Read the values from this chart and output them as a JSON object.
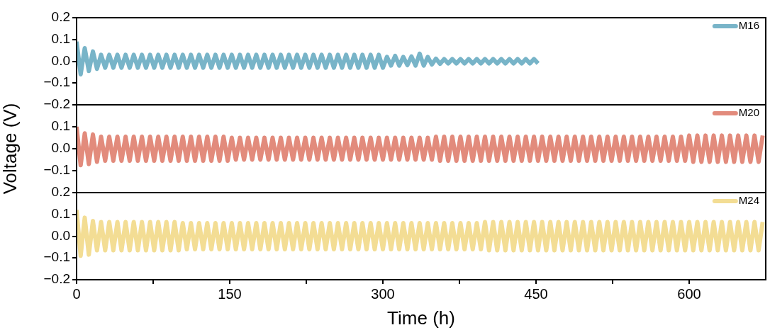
{
  "chart_data": [
    {
      "type": "line",
      "xlim": [
        0,
        675
      ],
      "ylim": [
        -0.2,
        0.2
      ],
      "yticks": [
        {
          "value": -0.2,
          "label": "−0.2"
        },
        {
          "value": -0.1,
          "label": "−0.1"
        },
        {
          "value": 0.0,
          "label": "0.0"
        },
        {
          "value": 0.1,
          "label": "0.1"
        },
        {
          "value": 0.2,
          "label": "0.2"
        }
      ],
      "tick_labels": "y",
      "grid": false,
      "legend": "top right",
      "x": [
        0,
        4,
        8,
        12,
        16,
        20,
        24,
        28,
        32,
        36,
        40,
        44,
        48,
        52,
        56,
        60,
        64,
        68,
        72,
        76,
        80,
        84,
        88,
        92,
        96,
        100,
        104,
        108,
        112,
        116,
        120,
        124,
        128,
        132,
        136,
        140,
        144,
        148,
        152,
        156,
        160,
        164,
        168,
        172,
        176,
        180,
        184,
        188,
        192,
        196,
        200,
        204,
        208,
        212,
        216,
        220,
        224,
        228,
        232,
        236,
        240,
        244,
        248,
        252,
        256,
        260,
        264,
        268,
        272,
        276,
        280,
        284,
        288,
        292,
        296,
        300,
        304,
        308,
        312,
        316,
        320,
        324,
        328,
        332,
        336,
        340,
        344,
        348,
        352,
        356,
        360,
        364,
        368,
        372,
        376,
        380,
        384,
        388,
        392,
        396,
        400,
        404,
        408,
        412,
        416,
        420,
        424,
        428,
        432,
        436,
        440,
        444,
        448,
        452
      ],
      "series": [
        {
          "name": "M16",
          "color": "#78b4c8",
          "values": [
            0.09,
            -0.06,
            0.06,
            -0.045,
            0.045,
            -0.035,
            0.03,
            -0.03,
            0.03,
            -0.03,
            0.03,
            -0.03,
            0.03,
            -0.03,
            0.03,
            -0.03,
            0.03,
            -0.03,
            0.03,
            -0.03,
            0.03,
            -0.03,
            0.03,
            -0.03,
            0.03,
            -0.03,
            0.03,
            -0.03,
            0.03,
            -0.03,
            0.03,
            -0.03,
            0.03,
            -0.03,
            0.03,
            -0.03,
            0.03,
            -0.03,
            0.03,
            -0.03,
            0.03,
            -0.03,
            0.03,
            -0.03,
            0.03,
            -0.03,
            0.03,
            -0.03,
            0.03,
            -0.03,
            0.03,
            -0.03,
            0.03,
            -0.03,
            0.03,
            -0.03,
            0.03,
            -0.03,
            0.03,
            -0.03,
            0.03,
            -0.03,
            0.03,
            -0.03,
            0.03,
            -0.03,
            0.03,
            -0.03,
            0.03,
            -0.03,
            0.03,
            -0.03,
            0.03,
            -0.03,
            0.03,
            -0.03,
            0.02,
            -0.02,
            0.025,
            -0.02,
            0.02,
            -0.018,
            0.022,
            -0.02,
            0.035,
            -0.02,
            0.02,
            -0.015,
            0.012,
            -0.012,
            0.01,
            -0.01,
            0.01,
            -0.01,
            0.01,
            -0.01,
            0.01,
            -0.01,
            0.01,
            -0.01,
            0.01,
            -0.01,
            0.01,
            -0.01,
            0.01,
            -0.01,
            0.01,
            -0.01,
            0.01,
            -0.01,
            0.01,
            -0.01,
            0.01,
            -0.01
          ]
        }
      ]
    },
    {
      "type": "line",
      "xlim": [
        0,
        675
      ],
      "ylim": [
        -0.2,
        0.2
      ],
      "yticks": [
        {
          "value": -0.2,
          "label": null
        },
        {
          "value": -0.1,
          "label": "−0.1"
        },
        {
          "value": 0.0,
          "label": "0.0"
        },
        {
          "value": 0.1,
          "label": "0.1"
        },
        {
          "value": 0.2,
          "label": null
        }
      ],
      "tick_labels": "y",
      "grid": false,
      "legend": "top right",
      "ylabel": "Voltage (V)",
      "x": [
        0,
        4,
        8,
        12,
        16,
        20,
        24,
        28,
        32,
        36,
        40,
        44,
        48,
        52,
        56,
        60,
        64,
        68,
        72,
        76,
        80,
        84,
        88,
        92,
        96,
        100,
        104,
        108,
        112,
        116,
        120,
        124,
        128,
        132,
        136,
        140,
        144,
        148,
        152,
        156,
        160,
        164,
        168,
        172,
        176,
        180,
        184,
        188,
        192,
        196,
        200,
        204,
        208,
        212,
        216,
        220,
        224,
        228,
        232,
        236,
        240,
        244,
        248,
        252,
        256,
        260,
        264,
        268,
        272,
        276,
        280,
        284,
        288,
        292,
        296,
        300,
        304,
        308,
        312,
        316,
        320,
        324,
        328,
        332,
        336,
        340,
        344,
        348,
        352,
        356,
        360,
        364,
        368,
        372,
        376,
        380,
        384,
        388,
        392,
        396,
        400,
        404,
        408,
        412,
        416,
        420,
        424,
        428,
        432,
        436,
        440,
        444,
        448,
        452,
        456,
        460,
        464,
        468,
        472,
        476,
        480,
        484,
        488,
        492,
        496,
        500,
        504,
        508,
        512,
        516,
        520,
        524,
        528,
        532,
        536,
        540,
        544,
        548,
        552,
        556,
        560,
        564,
        568,
        572,
        576,
        580,
        584,
        588,
        592,
        596,
        600,
        604,
        608,
        612,
        616,
        620,
        624,
        628,
        632,
        636,
        640,
        644,
        648,
        652,
        656,
        660,
        664,
        668,
        672
      ],
      "series": [
        {
          "name": "M20",
          "color": "#e28b7c",
          "values": [
            0.1,
            -0.075,
            0.07,
            -0.07,
            0.065,
            -0.06,
            0.055,
            -0.055,
            0.055,
            -0.055,
            0.055,
            -0.055,
            0.055,
            -0.055,
            0.055,
            -0.055,
            0.055,
            -0.055,
            0.055,
            -0.055,
            0.055,
            -0.055,
            0.055,
            -0.055,
            0.055,
            -0.055,
            0.055,
            -0.055,
            0.055,
            -0.055,
            0.055,
            -0.055,
            0.055,
            -0.055,
            0.055,
            -0.055,
            0.055,
            -0.055,
            0.05,
            -0.05,
            0.05,
            -0.05,
            0.05,
            -0.05,
            0.05,
            -0.05,
            0.05,
            -0.05,
            0.05,
            -0.05,
            0.05,
            -0.05,
            0.05,
            -0.05,
            0.05,
            -0.05,
            0.05,
            -0.05,
            0.05,
            -0.05,
            0.05,
            -0.05,
            0.05,
            -0.05,
            0.05,
            -0.05,
            0.05,
            -0.05,
            0.05,
            -0.05,
            0.05,
            -0.05,
            0.05,
            -0.05,
            0.05,
            -0.05,
            0.05,
            -0.05,
            0.05,
            -0.05,
            0.05,
            -0.05,
            0.05,
            -0.05,
            0.05,
            -0.05,
            0.05,
            -0.05,
            0.055,
            -0.055,
            0.055,
            -0.055,
            0.055,
            -0.055,
            0.055,
            -0.055,
            0.055,
            -0.055,
            0.055,
            -0.055,
            0.055,
            -0.055,
            0.055,
            -0.055,
            0.055,
            -0.055,
            0.055,
            -0.055,
            0.055,
            -0.055,
            0.055,
            -0.055,
            0.055,
            -0.055,
            0.055,
            -0.055,
            0.055,
            -0.055,
            0.055,
            -0.055,
            0.055,
            -0.055,
            0.055,
            -0.055,
            0.055,
            -0.055,
            0.055,
            -0.055,
            0.055,
            -0.055,
            0.055,
            -0.055,
            0.055,
            -0.055,
            0.055,
            -0.055,
            0.055,
            -0.055,
            0.055,
            -0.055,
            0.055,
            -0.055,
            0.055,
            -0.055,
            0.055,
            -0.055,
            0.055,
            -0.055,
            0.055,
            -0.055,
            0.06,
            -0.06,
            0.06,
            -0.06,
            0.06,
            -0.06,
            0.06,
            -0.06,
            0.06,
            -0.06,
            0.06,
            -0.06,
            0.06,
            -0.06,
            0.06,
            -0.06,
            0.06,
            -0.06,
            0.06
          ]
        }
      ]
    },
    {
      "type": "line",
      "xlim": [
        0,
        675
      ],
      "xticks": [
        0,
        {
          "value": 75,
          "label": null
        },
        150,
        {
          "value": 225,
          "label": null
        },
        300,
        {
          "value": 375,
          "label": null
        },
        450,
        {
          "value": 525,
          "label": null
        },
        600
      ],
      "ylim": [
        -0.2,
        0.2
      ],
      "yticks": [
        {
          "value": -0.2,
          "label": "−0.2"
        },
        {
          "value": -0.1,
          "label": "−0.1"
        },
        {
          "value": 0.0,
          "label": "0.0"
        },
        {
          "value": 0.1,
          "label": "0.1"
        },
        {
          "value": 0.2,
          "label": "0.2"
        }
      ],
      "grid": false,
      "legend": "top right",
      "xlabel": "Time (h)",
      "x": [
        0,
        4,
        8,
        12,
        16,
        20,
        24,
        28,
        32,
        36,
        40,
        44,
        48,
        52,
        56,
        60,
        64,
        68,
        72,
        76,
        80,
        84,
        88,
        92,
        96,
        100,
        104,
        108,
        112,
        116,
        120,
        124,
        128,
        132,
        136,
        140,
        144,
        148,
        152,
        156,
        160,
        164,
        168,
        172,
        176,
        180,
        184,
        188,
        192,
        196,
        200,
        204,
        208,
        212,
        216,
        220,
        224,
        228,
        232,
        236,
        240,
        244,
        248,
        252,
        256,
        260,
        264,
        268,
        272,
        276,
        280,
        284,
        288,
        292,
        296,
        300,
        304,
        308,
        312,
        316,
        320,
        324,
        328,
        332,
        336,
        340,
        344,
        348,
        352,
        356,
        360,
        364,
        368,
        372,
        376,
        380,
        384,
        388,
        392,
        396,
        400,
        404,
        408,
        412,
        416,
        420,
        424,
        428,
        432,
        436,
        440,
        444,
        448,
        452,
        456,
        460,
        464,
        468,
        472,
        476,
        480,
        484,
        488,
        492,
        496,
        500,
        504,
        508,
        512,
        516,
        520,
        524,
        528,
        532,
        536,
        540,
        544,
        548,
        552,
        556,
        560,
        564,
        568,
        572,
        576,
        580,
        584,
        588,
        592,
        596,
        600,
        604,
        608,
        612,
        616,
        620,
        624,
        628,
        632,
        636,
        640,
        644,
        648,
        652,
        656,
        660,
        664,
        668,
        672
      ],
      "series": [
        {
          "name": "M24",
          "color": "#f3dd94",
          "values": [
            0.12,
            -0.09,
            0.085,
            -0.085,
            0.07,
            -0.065,
            0.065,
            -0.065,
            0.065,
            -0.065,
            0.065,
            -0.065,
            0.065,
            -0.065,
            0.065,
            -0.065,
            0.065,
            -0.065,
            0.065,
            -0.065,
            0.065,
            -0.065,
            0.065,
            -0.065,
            0.065,
            -0.065,
            0.06,
            -0.06,
            0.06,
            -0.06,
            0.06,
            -0.06,
            0.06,
            -0.06,
            0.06,
            -0.06,
            0.06,
            -0.06,
            0.06,
            -0.06,
            0.06,
            -0.06,
            0.06,
            -0.06,
            0.06,
            -0.06,
            0.06,
            -0.06,
            0.06,
            -0.06,
            0.06,
            -0.06,
            0.06,
            -0.06,
            0.06,
            -0.06,
            0.06,
            -0.06,
            0.06,
            -0.06,
            0.06,
            -0.06,
            0.06,
            -0.06,
            0.06,
            -0.06,
            0.06,
            -0.06,
            0.06,
            -0.06,
            0.06,
            -0.06,
            0.06,
            -0.06,
            0.06,
            -0.06,
            0.06,
            -0.06,
            0.06,
            -0.06,
            0.06,
            -0.06,
            0.06,
            -0.06,
            0.06,
            -0.06,
            0.06,
            -0.06,
            0.06,
            -0.06,
            0.06,
            -0.06,
            0.06,
            -0.06,
            0.06,
            -0.06,
            0.06,
            -0.06,
            0.06,
            -0.06,
            0.065,
            -0.065,
            0.065,
            -0.065,
            0.065,
            -0.065,
            0.065,
            -0.065,
            0.065,
            -0.065,
            0.065,
            -0.065,
            0.065,
            -0.065,
            0.065,
            -0.065,
            0.065,
            -0.065,
            0.065,
            -0.065,
            0.065,
            -0.065,
            0.065,
            -0.065,
            0.065,
            -0.065,
            0.065,
            -0.065,
            0.065,
            -0.065,
            0.065,
            -0.065,
            0.065,
            -0.065,
            0.065,
            -0.065,
            0.065,
            -0.065,
            0.065,
            -0.065,
            0.065,
            -0.065,
            0.065,
            -0.065,
            0.065,
            -0.065,
            0.065,
            -0.065,
            0.065,
            -0.065,
            0.065,
            -0.065,
            0.065,
            -0.065,
            0.065,
            -0.065,
            0.065,
            -0.065,
            0.065,
            -0.065,
            0.065,
            -0.065,
            0.065,
            -0.065,
            0.065,
            -0.065,
            0.065,
            -0.065,
            0.065
          ]
        }
      ]
    }
  ]
}
